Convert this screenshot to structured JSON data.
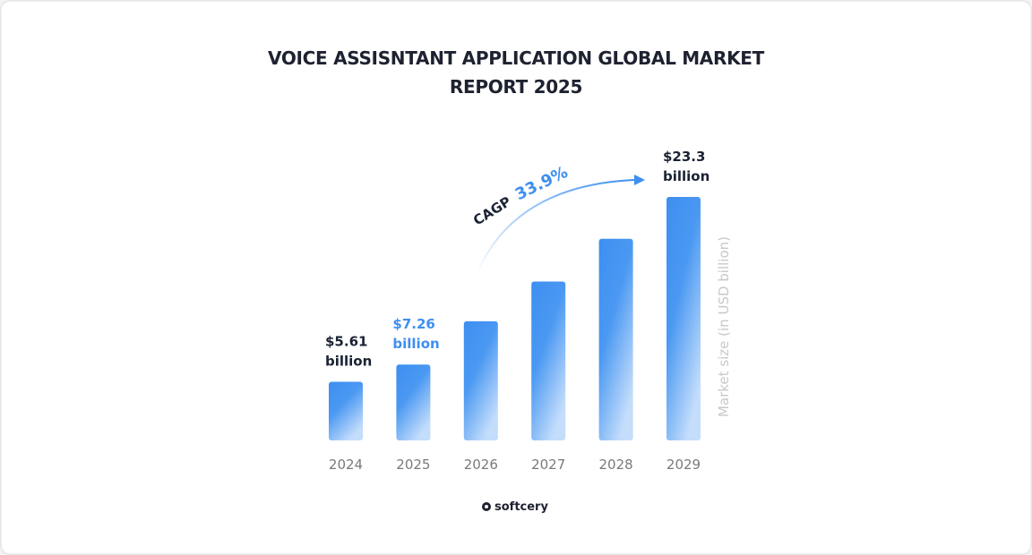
{
  "chart_data": {
    "type": "bar",
    "title": "VOICE ASSISNTANT APPLICATION GLOBAL MARKET REPORT 2025",
    "y_label": "Market size (in USD  billion)",
    "categories": [
      "2024",
      "2025",
      "2026",
      "2027",
      "2028",
      "2029"
    ],
    "values": [
      5.61,
      7.26,
      11.4,
      15.2,
      19.3,
      23.3
    ],
    "value_labels": [
      "$5.61 billion",
      "$7.26 billion",
      null,
      null,
      null,
      "$23.3 billion"
    ],
    "value_label_colors": [
      "#1a2233",
      "#3d8ff0",
      null,
      null,
      null,
      "#1a2233"
    ],
    "color": "#3d8ff0",
    "annotations": {
      "cagr_label": "CAGP",
      "cagr_value": "33.9%"
    },
    "brand": "softcery"
  }
}
